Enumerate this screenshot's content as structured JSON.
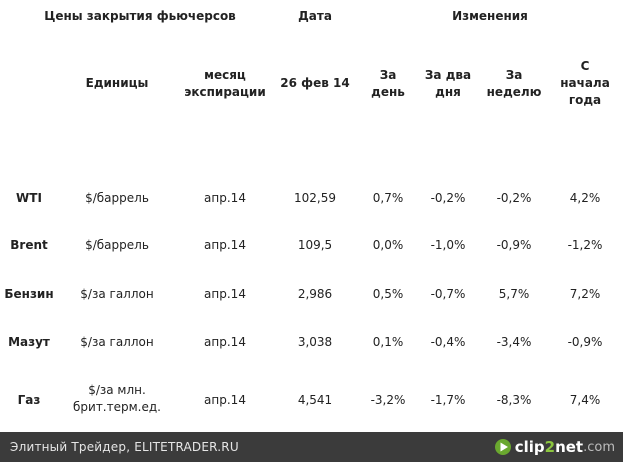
{
  "header_top": {
    "title": "Цены закрытия фьючерсов",
    "date_label": "Дата",
    "changes_label": "Изменения"
  },
  "header_sub": {
    "units": "Единицы",
    "expiry_line1": "месяц",
    "expiry_line2": "экспирации",
    "date_value": "26 фев 14",
    "day_line1": "За",
    "day_line2": "день",
    "two_days_line1": "За два",
    "two_days_line2": "дня",
    "week_line1": "За",
    "week_line2": "неделю",
    "ytd_line1": "С",
    "ytd_line2": "начала",
    "ytd_line3": "года"
  },
  "rows": [
    {
      "name": "WTI",
      "unit_line1": "$/баррель",
      "unit_line2": "",
      "expiry": "апр.14",
      "price": "102,59",
      "day": "0,7%",
      "two_days": "-0,2%",
      "week": "-0,2%",
      "ytd": "4,2%"
    },
    {
      "name": "Brent",
      "unit_line1": "$/баррель",
      "unit_line2": "",
      "expiry": "апр.14",
      "price": "109,5",
      "day": "0,0%",
      "two_days": "-1,0%",
      "week": "-0,9%",
      "ytd": "-1,2%"
    },
    {
      "name": "Бензин",
      "unit_line1": "$/за галлон",
      "unit_line2": "",
      "expiry": "апр.14",
      "price": "2,986",
      "day": "0,5%",
      "two_days": "-0,7%",
      "week": "5,7%",
      "ytd": "7,2%"
    },
    {
      "name": "Мазут",
      "unit_line1": "$/за галлон",
      "unit_line2": "",
      "expiry": "апр.14",
      "price": "3,038",
      "day": "0,1%",
      "two_days": "-0,4%",
      "week": "-3,4%",
      "ytd": "-0,9%"
    },
    {
      "name": "Газ",
      "unit_line1": "$/за млн.",
      "unit_line2": "брит.терм.ед.",
      "expiry": "апр.14",
      "price": "4,541",
      "day": "-3,2%",
      "two_days": "-1,7%",
      "week": "-8,3%",
      "ytd": "7,4%"
    }
  ],
  "footer": {
    "text": "Элитный Трейдер, ELITETRADER.RU",
    "brand_clip": "clip",
    "brand_two": "2",
    "brand_net": "net",
    "brand_com": ".com",
    "brand_icon": "play-arrow-icon",
    "colors": {
      "bar": "#3b3b3b",
      "brand_green": "#8cc63f"
    }
  }
}
